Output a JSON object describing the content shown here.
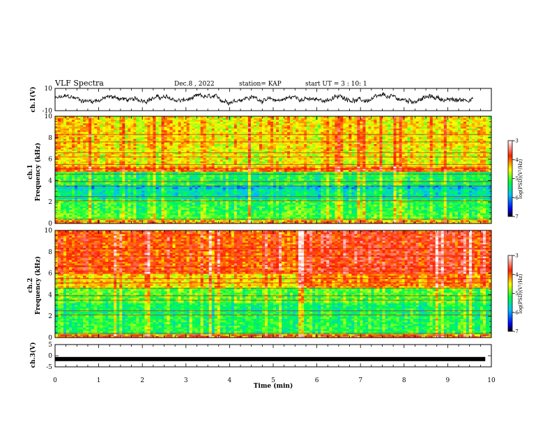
{
  "header": {
    "title": "VLF Spectra",
    "date": "Dec.8 , 2022",
    "station": "station= KAP",
    "start": "start UT = 3 : 10: 1"
  },
  "chart_data": [
    {
      "type": "line",
      "panel": "ch1-waveform",
      "ylabel": "ch.1(V)",
      "ylim": [
        -10,
        10
      ],
      "ytick_labels": [
        "10",
        "-10"
      ],
      "xlim": [
        0,
        10
      ]
    },
    {
      "type": "heatmap",
      "panel": "ch1-spectrogram",
      "ylabel": "Frequency (kHz)",
      "ylabel2": "ch.1",
      "ylim": [
        0,
        10
      ],
      "yticks": [
        0,
        2,
        4,
        6,
        8,
        10
      ],
      "ytick_labels": [
        "0",
        "2",
        "4",
        "6",
        "8",
        "10"
      ],
      "xlim": [
        0,
        10
      ],
      "colorbar": {
        "label": "log(PSD)(V²/Hz)",
        "range": [
          -7,
          -3
        ],
        "ticks": [
          -3,
          -4,
          -5,
          -6,
          -7
        ],
        "tick_labels": [
          "-3",
          "-4",
          "-5",
          "-6",
          "-7"
        ]
      }
    },
    {
      "type": "heatmap",
      "panel": "ch2-spectrogram",
      "ylabel": "Frequency (kHz)",
      "ylabel2": "ch.2",
      "ylim": [
        0,
        10
      ],
      "yticks": [
        0,
        2,
        4,
        6,
        8,
        10
      ],
      "ytick_labels": [
        "0",
        "2",
        "4",
        "6",
        "8",
        "10"
      ],
      "xlim": [
        0,
        10
      ],
      "colorbar": {
        "label": "log(PSD)(V²/Hz)",
        "range": [
          -7,
          -3
        ],
        "ticks": [
          -3,
          -4,
          -5,
          -6,
          -7
        ],
        "tick_labels": [
          "-3",
          "-4",
          "-5",
          "-6",
          "-7"
        ]
      }
    },
    {
      "type": "line",
      "panel": "ch3-waveform",
      "ylabel": "ch.3(V)",
      "ylim": [
        -5,
        5
      ],
      "ytick_labels": [
        "5",
        "0",
        "-5"
      ],
      "level": -1.5,
      "xlim": [
        0,
        10
      ]
    }
  ],
  "xaxis": {
    "label": "Time (min)",
    "ticks": [
      0,
      1,
      2,
      3,
      4,
      5,
      6,
      7,
      8,
      9,
      10
    ],
    "tick_labels": [
      "0",
      "1",
      "2",
      "3",
      "4",
      "5",
      "6",
      "7",
      "8",
      "9",
      "10"
    ]
  }
}
